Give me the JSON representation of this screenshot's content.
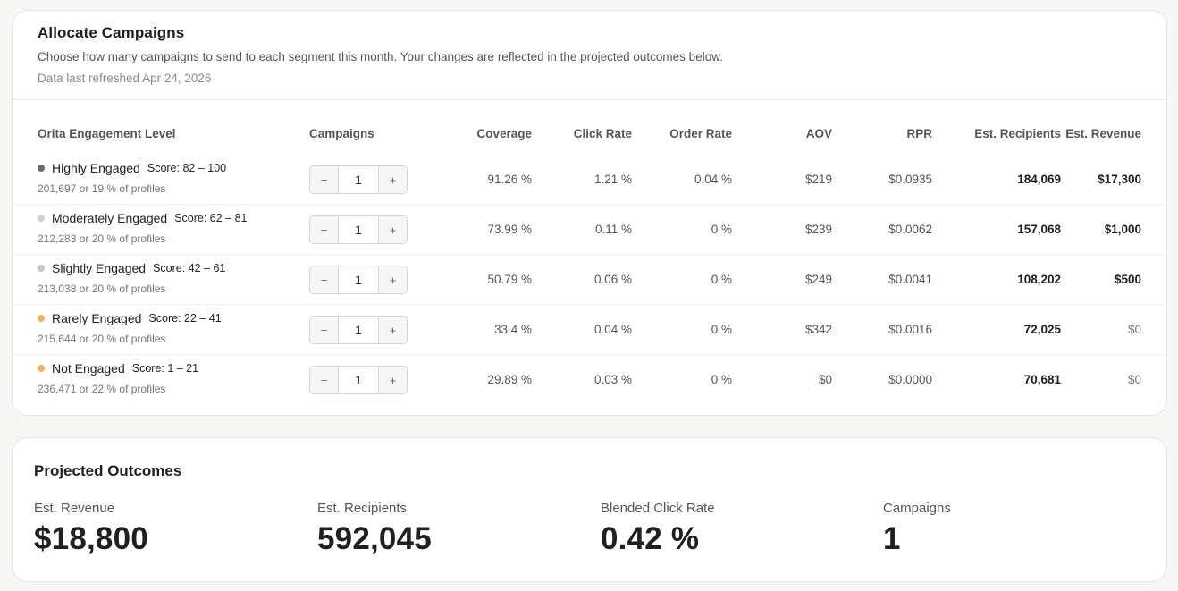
{
  "allocate": {
    "title": "Allocate Campaigns",
    "description": "Choose how many campaigns to send to each segment this month. Your changes are reflected in the projected outcomes below.",
    "refreshed": "Data last refreshed Apr 24, 2026",
    "headers": {
      "level": "Orita Engagement Level",
      "campaigns": "Campaigns",
      "coverage": "Coverage",
      "click_rate": "Click Rate",
      "order_rate": "Order Rate",
      "aov": "AOV",
      "rpr": "RPR",
      "est_recipients": "Est. Recipients",
      "est_revenue": "Est. Revenue"
    },
    "stepper": {
      "minus": "−",
      "plus": "+"
    },
    "rows": [
      {
        "name": "Highly Engaged",
        "score": "Score: 82 – 100",
        "profiles": "201,697 or 19 % of profiles",
        "dot_color": "#6b6b6b",
        "campaigns": "1",
        "coverage": "91.26 %",
        "click_rate": "1.21 %",
        "order_rate": "0.04 %",
        "aov": "$219",
        "rpr": "$0.0935",
        "est_recipients": "184,069",
        "est_revenue": "$17,300"
      },
      {
        "name": "Moderately Engaged",
        "score": "Score: 62 – 81",
        "profiles": "212,283 or 20 % of profiles",
        "dot_color": "#d0d0ce",
        "campaigns": "1",
        "coverage": "73.99 %",
        "click_rate": "0.11 %",
        "order_rate": "0 %",
        "aov": "$239",
        "rpr": "$0.0062",
        "est_recipients": "157,068",
        "est_revenue": "$1,000"
      },
      {
        "name": "Slightly Engaged",
        "score": "Score: 42 – 61",
        "profiles": "213,038 or 20 % of profiles",
        "dot_color": "#c8c8c6",
        "campaigns": "1",
        "coverage": "50.79 %",
        "click_rate": "0.06 %",
        "order_rate": "0 %",
        "aov": "$249",
        "rpr": "$0.0041",
        "est_recipients": "108,202",
        "est_revenue": "$500"
      },
      {
        "name": "Rarely Engaged",
        "score": "Score: 22 – 41",
        "profiles": "215,644 or 20 % of profiles",
        "dot_color": "#f0b25a",
        "campaigns": "1",
        "coverage": "33.4 %",
        "click_rate": "0.04 %",
        "order_rate": "0 %",
        "aov": "$342",
        "rpr": "$0.0016",
        "est_recipients": "72,025",
        "est_revenue": "$0"
      },
      {
        "name": "Not Engaged",
        "score": "Score: 1 – 21",
        "profiles": "236,471 or 22 % of profiles",
        "dot_color": "#f0b25a",
        "campaigns": "1",
        "coverage": "29.89 %",
        "click_rate": "0.03 %",
        "order_rate": "0 %",
        "aov": "$0",
        "rpr": "$0.0000",
        "est_recipients": "70,681",
        "est_revenue": "$0"
      }
    ]
  },
  "projected": {
    "title": "Projected Outcomes",
    "metrics": [
      {
        "label": "Est. Revenue",
        "value": "$18,800"
      },
      {
        "label": "Est. Recipients",
        "value": "592,045"
      },
      {
        "label": "Blended Click Rate",
        "value": "0.42 %"
      },
      {
        "label": "Campaigns",
        "value": "1"
      }
    ]
  }
}
